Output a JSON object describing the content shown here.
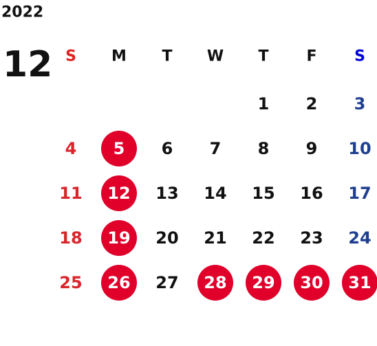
{
  "year": "2022",
  "month": "12",
  "weekdays": [
    "S",
    "M",
    "T",
    "W",
    "T",
    "F",
    "S"
  ],
  "weeks": [
    [
      1,
      2,
      3
    ],
    [
      4,
      5,
      6,
      7,
      8,
      9,
      10
    ],
    [
      11,
      12,
      13,
      14,
      15,
      16,
      17
    ],
    [
      18,
      19,
      20,
      21,
      22,
      23,
      24
    ],
    [
      25,
      26,
      27,
      28,
      29,
      30,
      31
    ]
  ],
  "marked_days": [
    5,
    12,
    19,
    26,
    28,
    29,
    30,
    31
  ]
}
